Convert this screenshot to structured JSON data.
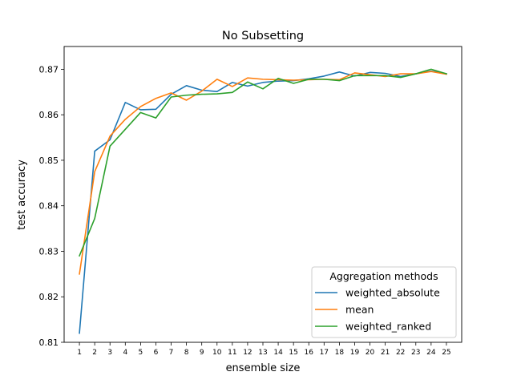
{
  "chart_data": {
    "type": "line",
    "title": "No Subsetting",
    "xlabel": "ensemble size",
    "ylabel": "test accuracy",
    "xlim": [
      0,
      26
    ],
    "ylim": [
      0.81,
      0.875
    ],
    "x": [
      1,
      2,
      3,
      4,
      5,
      6,
      7,
      8,
      9,
      10,
      11,
      12,
      13,
      14,
      15,
      16,
      17,
      18,
      19,
      20,
      21,
      22,
      23,
      24,
      25
    ],
    "x_tick_labels": [
      "1",
      "2",
      "3",
      "4",
      "5",
      "6",
      "7",
      "8",
      "9",
      "10",
      "11",
      "12",
      "13",
      "14",
      "15",
      "16",
      "17",
      "18",
      "19",
      "20",
      "21",
      "22",
      "23",
      "24",
      "25"
    ],
    "y_ticks": [
      0.81,
      0.82,
      0.83,
      0.84,
      0.85,
      0.86,
      0.87
    ],
    "y_tick_labels": [
      "0.81",
      "0.82",
      "0.83",
      "0.84",
      "0.85",
      "0.86",
      "0.87"
    ],
    "legend": {
      "title": "Aggregation methods",
      "location": "lower-right"
    },
    "series": [
      {
        "name": "weighted_absolute",
        "color": "#1f77b4",
        "values": [
          0.812,
          0.852,
          0.8545,
          0.8627,
          0.8611,
          0.8612,
          0.8645,
          0.8664,
          0.8654,
          0.8651,
          0.8671,
          0.8663,
          0.8671,
          0.8674,
          0.8675,
          0.8679,
          0.8685,
          0.8694,
          0.8685,
          0.8693,
          0.8691,
          0.8684,
          0.869,
          0.8696,
          0.869
        ]
      },
      {
        "name": "mean",
        "color": "#ff7f0e",
        "values": [
          0.825,
          0.8475,
          0.8553,
          0.859,
          0.8618,
          0.8636,
          0.8648,
          0.8632,
          0.8652,
          0.8678,
          0.8662,
          0.8681,
          0.8678,
          0.8677,
          0.8676,
          0.8677,
          0.8678,
          0.8677,
          0.8692,
          0.8688,
          0.8684,
          0.869,
          0.869,
          0.8695,
          0.8689
        ]
      },
      {
        "name": "weighted_ranked",
        "color": "#2ca02c",
        "values": [
          0.829,
          0.8372,
          0.8531,
          0.8568,
          0.8605,
          0.8593,
          0.8639,
          0.8643,
          0.8645,
          0.8646,
          0.8649,
          0.8672,
          0.8657,
          0.868,
          0.8669,
          0.8678,
          0.8678,
          0.8675,
          0.8686,
          0.8686,
          0.8686,
          0.8682,
          0.869,
          0.87,
          0.869
        ]
      }
    ]
  }
}
